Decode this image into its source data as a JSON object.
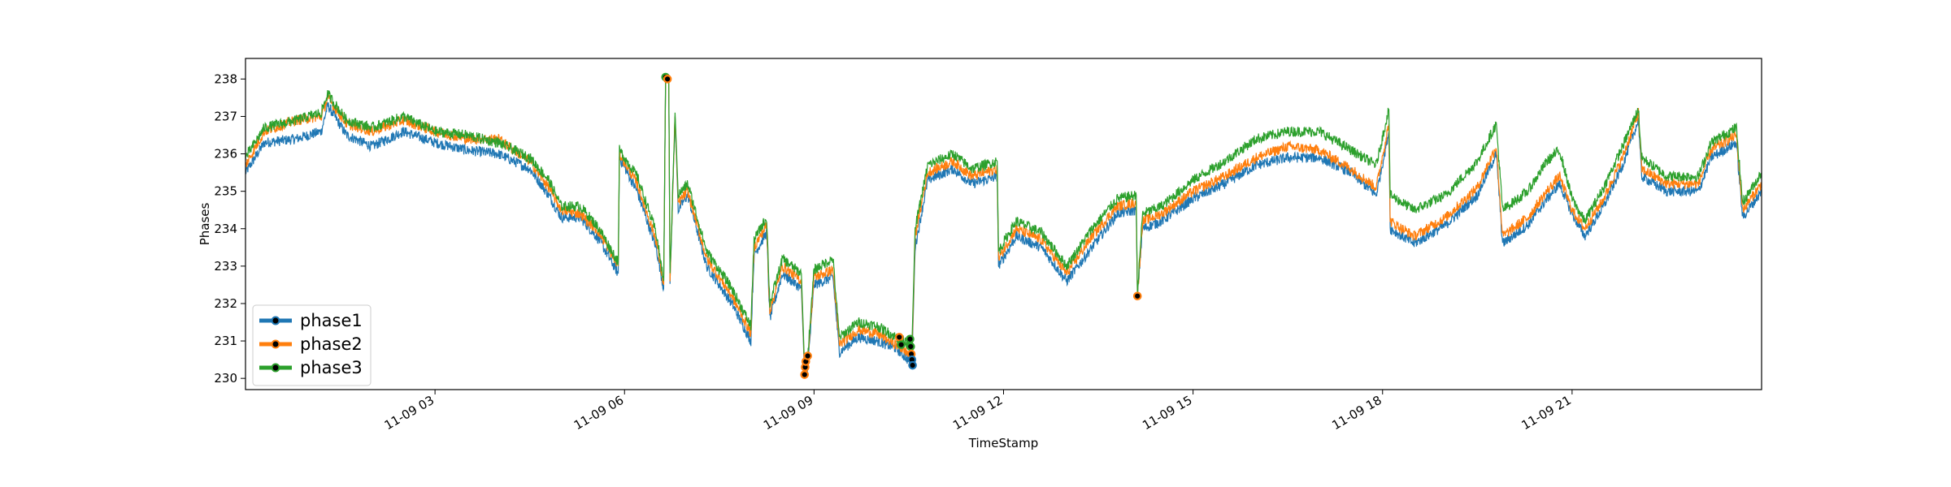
{
  "chart_data": {
    "type": "line",
    "xlabel": "TimeStamp",
    "ylabel": "Phases",
    "x_unit": "hours",
    "xlim": [
      0,
      24
    ],
    "ylim": [
      229.7,
      238.55
    ],
    "x_ticks": [
      {
        "value": 3,
        "label": "11-09 03"
      },
      {
        "value": 6,
        "label": "11-09 06"
      },
      {
        "value": 9,
        "label": "11-09 09"
      },
      {
        "value": 12,
        "label": "11-09 12"
      },
      {
        "value": 15,
        "label": "11-09 15"
      },
      {
        "value": 18,
        "label": "11-09 18"
      },
      {
        "value": 21,
        "label": "11-09 21"
      }
    ],
    "y_ticks": [
      230,
      231,
      232,
      233,
      234,
      235,
      236,
      237,
      238
    ],
    "grid": false,
    "legend": "lower-left",
    "series": [
      {
        "name": "phase1",
        "color": "#1f77b4",
        "points": [
          [
            0,
            235.5
          ],
          [
            0.3,
            236.3
          ],
          [
            0.8,
            236.4
          ],
          [
            1.2,
            236.6
          ],
          [
            1.3,
            237.3
          ],
          [
            1.6,
            236.5
          ],
          [
            2.0,
            236.2
          ],
          [
            2.5,
            236.6
          ],
          [
            3.0,
            236.3
          ],
          [
            3.5,
            236.1
          ],
          [
            4.0,
            236.0
          ],
          [
            4.5,
            235.6
          ],
          [
            4.8,
            234.9
          ],
          [
            5.0,
            234.3
          ],
          [
            5.3,
            234.3
          ],
          [
            5.6,
            233.7
          ],
          [
            5.9,
            232.8
          ],
          [
            5.92,
            235.9
          ],
          [
            6.2,
            235.0
          ],
          [
            6.5,
            233.5
          ],
          [
            6.62,
            232.4
          ],
          [
            6.65,
            238.0
          ],
          [
            6.7,
            238.0
          ],
          [
            6.72,
            232.5
          ],
          [
            6.8,
            237.0
          ],
          [
            6.85,
            234.5
          ],
          [
            7.0,
            234.9
          ],
          [
            7.3,
            233.0
          ],
          [
            7.7,
            232.0
          ],
          [
            8.0,
            231.0
          ],
          [
            8.05,
            233.3
          ],
          [
            8.25,
            233.9
          ],
          [
            8.3,
            231.6
          ],
          [
            8.5,
            232.8
          ],
          [
            8.8,
            232.4
          ],
          [
            8.85,
            230.1
          ],
          [
            8.9,
            230.3
          ],
          [
            9.0,
            232.5
          ],
          [
            9.3,
            232.7
          ],
          [
            9.4,
            230.7
          ],
          [
            9.7,
            231.1
          ],
          [
            10.0,
            231.0
          ],
          [
            10.3,
            230.8
          ],
          [
            10.55,
            230.4
          ],
          [
            10.6,
            233.5
          ],
          [
            10.8,
            235.3
          ],
          [
            11.2,
            235.6
          ],
          [
            11.5,
            235.2
          ],
          [
            11.9,
            235.4
          ],
          [
            11.92,
            233.0
          ],
          [
            12.2,
            233.8
          ],
          [
            12.6,
            233.5
          ],
          [
            13.0,
            232.6
          ],
          [
            13.4,
            233.5
          ],
          [
            13.8,
            234.4
          ],
          [
            14.1,
            234.5
          ],
          [
            14.12,
            232.2
          ],
          [
            14.2,
            234.0
          ],
          [
            14.5,
            234.2
          ],
          [
            15.0,
            234.8
          ],
          [
            15.5,
            235.2
          ],
          [
            16.0,
            235.7
          ],
          [
            16.5,
            235.9
          ],
          [
            17.0,
            235.9
          ],
          [
            17.5,
            235.5
          ],
          [
            17.9,
            234.9
          ],
          [
            18.1,
            236.6
          ],
          [
            18.12,
            234.0
          ],
          [
            18.5,
            233.6
          ],
          [
            19.0,
            234.1
          ],
          [
            19.5,
            234.9
          ],
          [
            19.8,
            236.0
          ],
          [
            19.9,
            233.6
          ],
          [
            20.3,
            234.1
          ],
          [
            20.6,
            234.8
          ],
          [
            20.8,
            235.2
          ],
          [
            21.0,
            234.4
          ],
          [
            21.2,
            233.8
          ],
          [
            21.5,
            234.6
          ],
          [
            21.8,
            235.7
          ],
          [
            22.05,
            236.9
          ],
          [
            22.1,
            235.4
          ],
          [
            22.5,
            235.0
          ],
          [
            23.0,
            235.0
          ],
          [
            23.2,
            235.9
          ],
          [
            23.6,
            236.3
          ],
          [
            23.7,
            234.3
          ],
          [
            24.0,
            235.0
          ]
        ]
      },
      {
        "name": "phase2",
        "color": "#ff7f0e",
        "points": [
          [
            0,
            235.7
          ],
          [
            0.3,
            236.6
          ],
          [
            0.8,
            236.9
          ],
          [
            1.2,
            237.0
          ],
          [
            1.3,
            237.5
          ],
          [
            1.6,
            236.8
          ],
          [
            2.0,
            236.6
          ],
          [
            2.5,
            236.9
          ],
          [
            3.0,
            236.6
          ],
          [
            3.5,
            236.4
          ],
          [
            4.0,
            236.4
          ],
          [
            4.5,
            235.8
          ],
          [
            4.8,
            235.1
          ],
          [
            5.0,
            234.5
          ],
          [
            5.3,
            234.4
          ],
          [
            5.6,
            233.9
          ],
          [
            5.9,
            233.0
          ],
          [
            5.92,
            236.0
          ],
          [
            6.2,
            235.2
          ],
          [
            6.5,
            233.7
          ],
          [
            6.62,
            232.5
          ],
          [
            6.65,
            238.0
          ],
          [
            6.7,
            238.0
          ],
          [
            6.72,
            232.6
          ],
          [
            6.8,
            237.0
          ],
          [
            6.85,
            234.7
          ],
          [
            7.0,
            235.0
          ],
          [
            7.3,
            233.2
          ],
          [
            7.7,
            232.2
          ],
          [
            8.0,
            231.2
          ],
          [
            8.05,
            233.5
          ],
          [
            8.25,
            234.1
          ],
          [
            8.3,
            231.8
          ],
          [
            8.5,
            233.0
          ],
          [
            8.8,
            232.6
          ],
          [
            8.85,
            230.2
          ],
          [
            8.9,
            230.5
          ],
          [
            9.0,
            232.7
          ],
          [
            9.3,
            232.9
          ],
          [
            9.4,
            230.9
          ],
          [
            9.7,
            231.3
          ],
          [
            10.0,
            231.2
          ],
          [
            10.3,
            230.9
          ],
          [
            10.55,
            230.6
          ],
          [
            10.6,
            233.8
          ],
          [
            10.8,
            235.5
          ],
          [
            11.2,
            235.8
          ],
          [
            11.5,
            235.4
          ],
          [
            11.9,
            235.6
          ],
          [
            11.92,
            233.2
          ],
          [
            12.2,
            234.0
          ],
          [
            12.6,
            233.7
          ],
          [
            13.0,
            232.8
          ],
          [
            13.4,
            233.8
          ],
          [
            13.8,
            234.6
          ],
          [
            14.1,
            234.7
          ],
          [
            14.12,
            232.2
          ],
          [
            14.2,
            234.2
          ],
          [
            14.5,
            234.4
          ],
          [
            15.0,
            235.0
          ],
          [
            15.5,
            235.4
          ],
          [
            16.0,
            235.9
          ],
          [
            16.5,
            236.2
          ],
          [
            17.0,
            236.1
          ],
          [
            17.5,
            235.6
          ],
          [
            17.9,
            235.1
          ],
          [
            18.1,
            236.8
          ],
          [
            18.12,
            234.2
          ],
          [
            18.5,
            233.8
          ],
          [
            19.0,
            234.3
          ],
          [
            19.5,
            235.1
          ],
          [
            19.8,
            236.2
          ],
          [
            19.9,
            233.8
          ],
          [
            20.3,
            234.3
          ],
          [
            20.6,
            235.0
          ],
          [
            20.8,
            235.4
          ],
          [
            21.0,
            234.5
          ],
          [
            21.2,
            234.0
          ],
          [
            21.5,
            234.8
          ],
          [
            21.8,
            235.9
          ],
          [
            22.05,
            237.1
          ],
          [
            22.1,
            235.6
          ],
          [
            22.5,
            235.2
          ],
          [
            23.0,
            235.2
          ],
          [
            23.2,
            236.1
          ],
          [
            23.6,
            236.5
          ],
          [
            23.7,
            234.5
          ],
          [
            24.0,
            235.2
          ]
        ]
      },
      {
        "name": "phase3",
        "color": "#2ca02c",
        "points": [
          [
            0,
            235.9
          ],
          [
            0.3,
            236.7
          ],
          [
            0.8,
            236.9
          ],
          [
            1.2,
            237.1
          ],
          [
            1.3,
            237.6
          ],
          [
            1.6,
            236.9
          ],
          [
            2.0,
            236.7
          ],
          [
            2.5,
            237.0
          ],
          [
            3.0,
            236.6
          ],
          [
            3.5,
            236.5
          ],
          [
            4.0,
            236.3
          ],
          [
            4.5,
            235.9
          ],
          [
            4.8,
            235.3
          ],
          [
            5.0,
            234.6
          ],
          [
            5.3,
            234.6
          ],
          [
            5.6,
            234.0
          ],
          [
            5.9,
            233.1
          ],
          [
            5.92,
            236.1
          ],
          [
            6.2,
            235.4
          ],
          [
            6.5,
            233.9
          ],
          [
            6.62,
            232.6
          ],
          [
            6.65,
            238.1
          ],
          [
            6.7,
            238.1
          ],
          [
            6.72,
            232.7
          ],
          [
            6.8,
            237.1
          ],
          [
            6.85,
            234.9
          ],
          [
            7.0,
            235.2
          ],
          [
            7.3,
            233.4
          ],
          [
            7.7,
            232.4
          ],
          [
            8.0,
            231.4
          ],
          [
            8.05,
            233.7
          ],
          [
            8.25,
            234.3
          ],
          [
            8.3,
            232.0
          ],
          [
            8.5,
            233.2
          ],
          [
            8.8,
            232.8
          ],
          [
            8.85,
            230.3
          ],
          [
            8.9,
            230.6
          ],
          [
            9.0,
            232.9
          ],
          [
            9.3,
            233.2
          ],
          [
            9.4,
            231.1
          ],
          [
            9.7,
            231.5
          ],
          [
            10.0,
            231.4
          ],
          [
            10.3,
            231.1
          ],
          [
            10.55,
            230.9
          ],
          [
            10.6,
            234.0
          ],
          [
            10.8,
            235.7
          ],
          [
            11.2,
            236.0
          ],
          [
            11.5,
            235.6
          ],
          [
            11.9,
            235.8
          ],
          [
            11.92,
            233.4
          ],
          [
            12.2,
            234.2
          ],
          [
            12.6,
            233.9
          ],
          [
            13.0,
            233.0
          ],
          [
            13.4,
            234.0
          ],
          [
            13.8,
            234.8
          ],
          [
            14.1,
            234.9
          ],
          [
            14.12,
            232.3
          ],
          [
            14.2,
            234.4
          ],
          [
            14.5,
            234.6
          ],
          [
            15.0,
            235.3
          ],
          [
            15.5,
            235.8
          ],
          [
            16.0,
            236.4
          ],
          [
            16.5,
            236.6
          ],
          [
            17.0,
            236.6
          ],
          [
            17.5,
            236.1
          ],
          [
            17.9,
            235.7
          ],
          [
            18.1,
            237.2
          ],
          [
            18.12,
            234.9
          ],
          [
            18.5,
            234.5
          ],
          [
            19.0,
            234.9
          ],
          [
            19.5,
            235.8
          ],
          [
            19.8,
            236.8
          ],
          [
            19.9,
            234.5
          ],
          [
            20.3,
            235.0
          ],
          [
            20.6,
            235.8
          ],
          [
            20.8,
            236.1
          ],
          [
            21.0,
            234.8
          ],
          [
            21.2,
            234.2
          ],
          [
            21.5,
            235.1
          ],
          [
            21.8,
            236.2
          ],
          [
            22.05,
            237.2
          ],
          [
            22.1,
            235.9
          ],
          [
            22.5,
            235.4
          ],
          [
            23.0,
            235.4
          ],
          [
            23.2,
            236.3
          ],
          [
            23.6,
            236.7
          ],
          [
            23.7,
            234.7
          ],
          [
            24.0,
            235.5
          ]
        ]
      }
    ],
    "anomaly_points": [
      {
        "x": 6.65,
        "y": 238.05,
        "color": "#2ca02c"
      },
      {
        "x": 6.68,
        "y": 238.0,
        "color": "#ff7f0e"
      },
      {
        "x": 8.85,
        "y": 230.1,
        "color": "#ff7f0e"
      },
      {
        "x": 8.86,
        "y": 230.3,
        "color": "#ff7f0e"
      },
      {
        "x": 8.87,
        "y": 230.45,
        "color": "#ff7f0e"
      },
      {
        "x": 8.9,
        "y": 230.6,
        "color": "#ff7f0e"
      },
      {
        "x": 10.35,
        "y": 231.1,
        "color": "#ff7f0e"
      },
      {
        "x": 10.38,
        "y": 230.9,
        "color": "#2ca02c"
      },
      {
        "x": 10.52,
        "y": 231.05,
        "color": "#2ca02c"
      },
      {
        "x": 10.53,
        "y": 230.85,
        "color": "#2ca02c"
      },
      {
        "x": 10.54,
        "y": 230.65,
        "color": "#ff7f0e"
      },
      {
        "x": 10.55,
        "y": 230.5,
        "color": "#1f77b4"
      },
      {
        "x": 10.56,
        "y": 230.35,
        "color": "#1f77b4"
      },
      {
        "x": 14.12,
        "y": 232.2,
        "color": "#ff7f0e"
      }
    ]
  }
}
